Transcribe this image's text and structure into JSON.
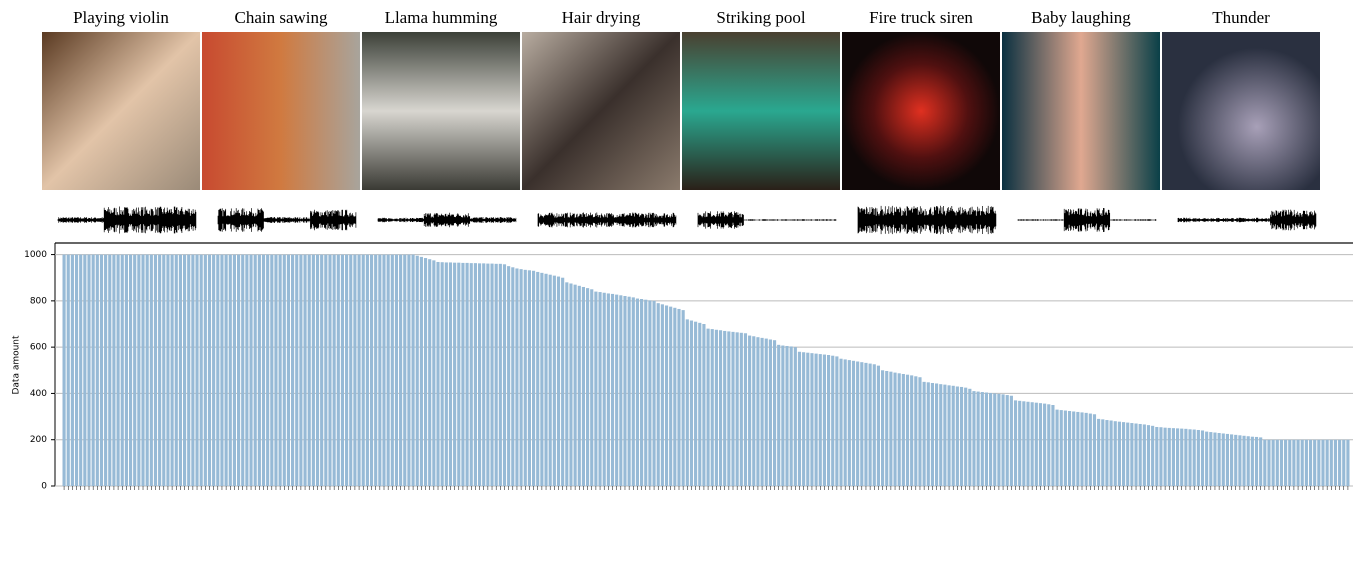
{
  "header": {
    "captions": [
      "Playing violin",
      "Chain sawing",
      "Llama humming",
      "Hair drying",
      "Striking pool",
      "Fire truck siren",
      "Baby laughing",
      "Thunder"
    ]
  },
  "chart_data": {
    "type": "bar",
    "y_label": "Data amount",
    "color": "#97bad6",
    "grid": true,
    "ylim": [
      0,
      1050
    ],
    "yticks": [
      0,
      200,
      400,
      600,
      800,
      1000
    ],
    "values": [
      1000,
      1000,
      1000,
      1000,
      1000,
      1000,
      1000,
      1000,
      1000,
      1000,
      1000,
      1000,
      1000,
      1000,
      1000,
      1000,
      1000,
      1000,
      1000,
      1000,
      1000,
      1000,
      1000,
      1000,
      1000,
      1000,
      1000,
      1000,
      1000,
      1000,
      1000,
      1000,
      1000,
      1000,
      1000,
      1000,
      1000,
      1000,
      1000,
      1000,
      1000,
      1000,
      1000,
      1000,
      1000,
      1000,
      1000,
      1000,
      1000,
      1000,
      1000,
      1000,
      1000,
      1000,
      1000,
      1000,
      1000,
      1000,
      1000,
      1000,
      1000,
      1000,
      1000,
      1000,
      1000,
      1000,
      1000,
      1000,
      1000,
      1000,
      1000,
      1000,
      1000,
      1000,
      1000,
      1000,
      1000,
      1000,
      1000,
      1000,
      1000,
      1000,
      1000,
      1000,
      1000,
      995,
      990,
      985,
      980,
      975,
      968,
      967,
      966,
      966,
      965,
      965,
      964,
      964,
      963,
      963,
      962,
      962,
      961,
      961,
      960,
      960,
      958,
      950,
      945,
      940,
      937,
      934,
      932,
      930,
      925,
      921,
      917,
      913,
      909,
      905,
      900,
      880,
      875,
      870,
      865,
      860,
      855,
      850,
      840,
      838,
      835,
      832,
      830,
      827,
      824,
      821,
      818,
      815,
      810,
      808,
      805,
      802,
      800,
      790,
      785,
      780,
      775,
      770,
      765,
      760,
      720,
      715,
      710,
      705,
      700,
      680,
      678,
      675,
      673,
      670,
      668,
      666,
      664,
      662,
      660,
      650,
      647,
      643,
      640,
      637,
      633,
      630,
      610,
      607,
      605,
      603,
      600,
      580,
      578,
      576,
      574,
      572,
      570,
      568,
      566,
      563,
      560,
      550,
      547,
      544,
      541,
      538,
      535,
      532,
      529,
      526,
      520,
      500,
      497,
      494,
      490,
      487,
      484,
      481,
      478,
      474,
      470,
      450,
      448,
      445,
      443,
      440,
      438,
      435,
      433,
      430,
      428,
      425,
      420,
      410,
      408,
      406,
      404,
      402,
      400,
      398,
      396,
      393,
      390,
      370,
      368,
      366,
      364,
      362,
      360,
      358,
      356,
      353,
      350,
      330,
      328,
      326,
      324,
      322,
      320,
      318,
      316,
      313,
      310,
      290,
      288,
      285,
      283,
      280,
      278,
      276,
      274,
      272,
      270,
      268,
      266,
      263,
      260,
      255,
      254,
      252,
      251,
      250,
      249,
      248,
      247,
      245,
      244,
      242,
      240,
      235,
      233,
      231,
      229,
      227,
      225,
      223,
      221,
      219,
      217,
      215,
      213,
      212,
      210,
      200,
      200,
      200,
      200,
      200,
      200,
      200,
      200,
      200,
      200,
      200,
      200,
      200,
      200,
      200,
      200,
      200,
      200,
      200,
      200,
      200
    ]
  }
}
